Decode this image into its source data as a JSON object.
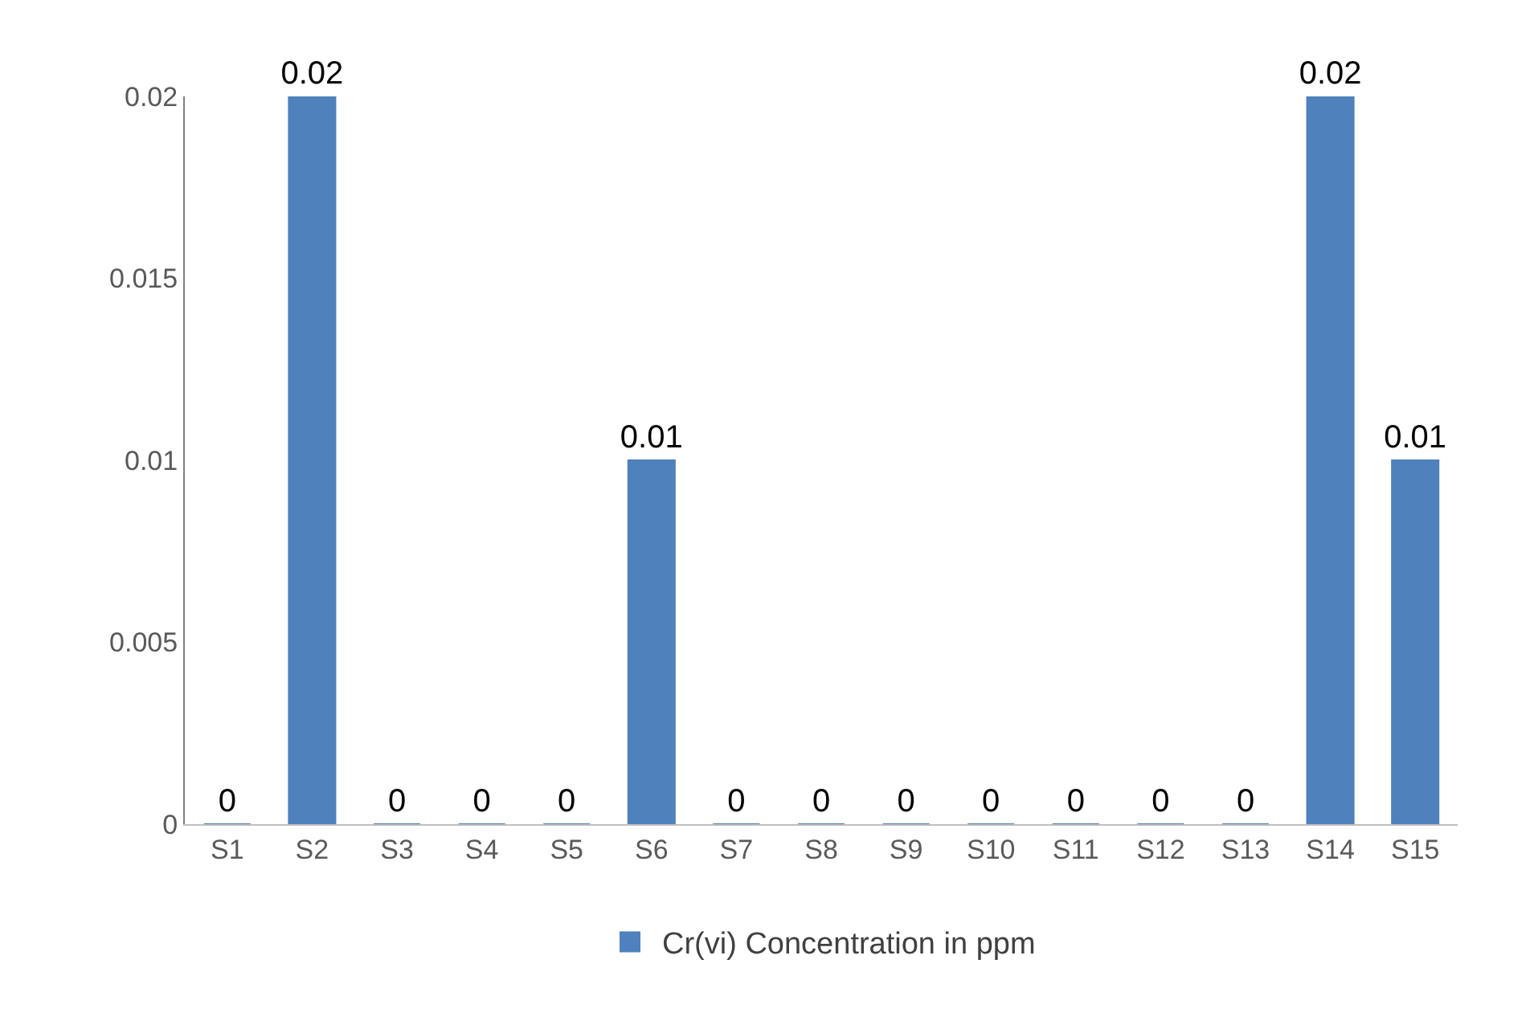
{
  "chart_data": {
    "type": "bar",
    "categories": [
      "S1",
      "S2",
      "S3",
      "S4",
      "S5",
      "S6",
      "S7",
      "S8",
      "S9",
      "S10",
      "S11",
      "S12",
      "S13",
      "S14",
      "S15"
    ],
    "series": [
      {
        "name": "Cr(vi) Concentration in ppm",
        "color": "#4f81bd",
        "values": [
          0,
          0.02,
          0,
          0,
          0,
          0.01,
          0,
          0,
          0,
          0,
          0,
          0,
          0,
          0.02,
          0.01
        ]
      }
    ],
    "ylim": [
      0,
      0.02
    ],
    "yticks": [
      0,
      0.005,
      0.01,
      0.015,
      0.02
    ],
    "grid": false,
    "legend": "bottom",
    "data_labels": true
  }
}
